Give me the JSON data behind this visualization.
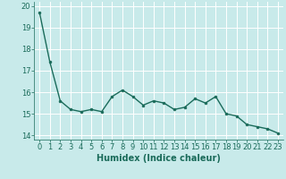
{
  "x": [
    0,
    1,
    2,
    3,
    4,
    5,
    6,
    7,
    8,
    9,
    10,
    11,
    12,
    13,
    14,
    15,
    16,
    17,
    18,
    19,
    20,
    21,
    22,
    23
  ],
  "y": [
    19.7,
    17.4,
    15.6,
    15.2,
    15.1,
    15.2,
    15.1,
    15.8,
    16.1,
    15.8,
    15.4,
    15.6,
    15.5,
    15.2,
    15.3,
    15.7,
    15.5,
    15.8,
    15.0,
    14.9,
    14.5,
    14.4,
    14.3,
    14.1
  ],
  "line_color": "#1a6b5a",
  "marker": "o",
  "marker_size": 2,
  "xlabel": "Humidex (Indice chaleur)",
  "ylim": [
    13.8,
    20.2
  ],
  "xlim": [
    -0.5,
    23.5
  ],
  "yticks": [
    14,
    15,
    16,
    17,
    18,
    19,
    20
  ],
  "xticks": [
    0,
    1,
    2,
    3,
    4,
    5,
    6,
    7,
    8,
    9,
    10,
    11,
    12,
    13,
    14,
    15,
    16,
    17,
    18,
    19,
    20,
    21,
    22,
    23
  ],
  "bg_color": "#c8eaea",
  "grid_color": "#b0d8d8",
  "tick_color": "#1a6b5a",
  "label_color": "#1a6b5a",
  "xlabel_fontsize": 7,
  "tick_fontsize": 6,
  "linewidth": 1.0
}
